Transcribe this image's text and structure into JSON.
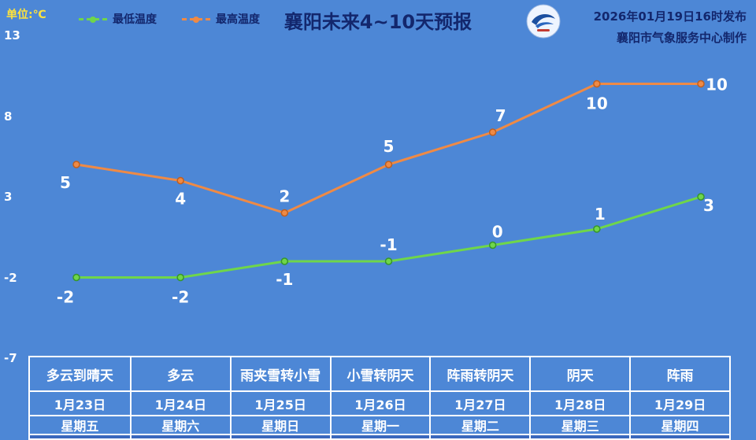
{
  "header": {
    "unit_label": "单位:℃",
    "title": "襄阳未来4~10天预报",
    "issued": "2026年01月19日16时发布",
    "producer": "襄阳市气象服务中心制作",
    "legend": [
      {
        "label": "最低温度",
        "color": "#6fd64a"
      },
      {
        "label": "最高温度",
        "color": "#ef8a45"
      }
    ]
  },
  "chart_data": {
    "type": "line",
    "categories": [
      "1月23日",
      "1月24日",
      "1月25日",
      "1月26日",
      "1月27日",
      "1月28日",
      "1月29日"
    ],
    "series": [
      {
        "key": "min",
        "name": "最低温度",
        "color": "#6fd64a",
        "marker_stroke": "#36962c",
        "values": [
          -2,
          -2,
          -1,
          -1,
          0,
          1,
          3
        ]
      },
      {
        "key": "max",
        "name": "最高温度",
        "color": "#ef8a45",
        "marker_stroke": "#c05f1f",
        "values": [
          5,
          4,
          2,
          5,
          7,
          10,
          10
        ]
      }
    ],
    "title": "襄阳未来4~10天预报",
    "xlabel": "",
    "ylabel": "℃",
    "ylim": [
      -7,
      13
    ],
    "yticks": [
      13,
      8,
      3,
      -2,
      -7
    ],
    "grid": false,
    "legend_position": "top-left"
  },
  "table": {
    "columns": [
      {
        "condition": "多云到晴天",
        "date": "1月23日",
        "weekday": "星期五"
      },
      {
        "condition": "多云",
        "date": "1月24日",
        "weekday": "星期六"
      },
      {
        "condition": "雨夹雪转小雪",
        "date": "1月25日",
        "weekday": "星期日"
      },
      {
        "condition": "小雪转阴天",
        "date": "1月26日",
        "weekday": "星期一"
      },
      {
        "condition": "阵雨转阴天",
        "date": "1月27日",
        "weekday": "星期二"
      },
      {
        "condition": "阴天",
        "date": "1月28日",
        "weekday": "星期三"
      },
      {
        "condition": "阵雨",
        "date": "1月29日",
        "weekday": "星期四"
      }
    ]
  },
  "colors": {
    "background": "#4d87d6",
    "accent_min": "#6fd64a",
    "accent_max": "#ef8a45",
    "title_text": "#13276d",
    "unit_text": "#ffe33c",
    "axis_text": "#ffffff",
    "table_footer": "#3a68bd"
  }
}
